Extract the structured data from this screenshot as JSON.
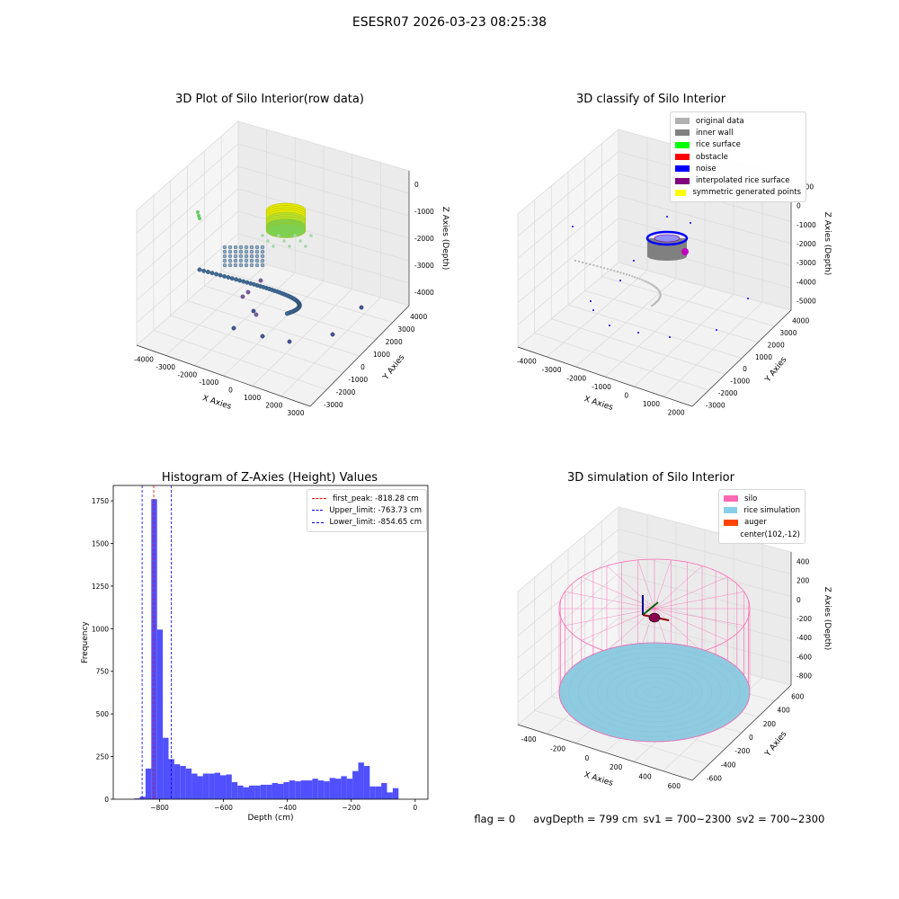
{
  "suptitle": "ESESR07 2026-03-23 08:25:38",
  "panels": {
    "raw": {
      "title": "3D Plot of Silo Interior(row data)",
      "xlabel": "X Axies",
      "ylabel": "Y Axies",
      "zlabel": "Z Axies (Depth)",
      "xticks": [
        "-4000",
        "-3000",
        "-2000",
        "-1000",
        "0",
        "1000",
        "2000",
        "3000"
      ],
      "yticks": [
        "-3000",
        "-2000",
        "-1000",
        "0",
        "1000",
        "2000",
        "3000",
        "4000"
      ],
      "zticks": [
        "0",
        "-1000",
        "-2000",
        "-3000",
        "-4000"
      ]
    },
    "classify": {
      "title": "3D classify of Silo Interior",
      "xlabel": "X Axies",
      "ylabel": "Y Axies",
      "zlabel": "Z Axies (Depth)",
      "xticks": [
        "-4000",
        "-3000",
        "-2000",
        "-1000",
        "0",
        "1000",
        "2000"
      ],
      "yticks": [
        "-3000",
        "-2000",
        "-1000",
        "0",
        "1000",
        "2000",
        "3000",
        "4000"
      ],
      "zticks": [
        "1000",
        "0",
        "-1000",
        "-2000",
        "-3000",
        "-4000",
        "-5000"
      ],
      "legend": [
        {
          "label": "original data",
          "color": "#b0b0b0"
        },
        {
          "label": "inner wall",
          "color": "#808080"
        },
        {
          "label": "rice surface",
          "color": "#00ff00"
        },
        {
          "label": "obstacle",
          "color": "#ff0000"
        },
        {
          "label": "noise",
          "color": "#0000ff"
        },
        {
          "label": "interpolated rice surface",
          "color": "#800080"
        },
        {
          "label": "symmetric generated points",
          "color": "#ffff00"
        }
      ]
    },
    "simulation": {
      "title": "3D simulation of Silo Interior",
      "xlabel": "X Axies",
      "ylabel": "Y Axies",
      "zlabel": "Z Axies (Depth)",
      "xticks": [
        "-400",
        "-200",
        "0",
        "200",
        "400",
        "600"
      ],
      "yticks": [
        "-600",
        "-400",
        "-200",
        "0",
        "200",
        "400",
        "600"
      ],
      "zticks": [
        "400",
        "200",
        "0",
        "-200",
        "-400",
        "-600",
        "-800"
      ],
      "legend": [
        {
          "label": "silo",
          "color": "#ff69b4"
        },
        {
          "label": "rice simulation",
          "color": "#87ceeb"
        },
        {
          "label": "auger",
          "color": "#ff4500"
        },
        {
          "label": "center(102,-12)",
          "color": ""
        }
      ]
    }
  },
  "chart_data": {
    "type": "bar",
    "title": "Histogram of Z-Axies (Height) Values",
    "xlabel": "Depth (cm)",
    "ylabel": "Frequency",
    "xlim": [
      -945,
      40
    ],
    "ylim": [
      0,
      1840
    ],
    "xticks": [
      -800,
      -600,
      -400,
      -200,
      0
    ],
    "yticks": [
      0,
      250,
      500,
      750,
      1000,
      1250,
      1500,
      1750
    ],
    "bar_color": "#5050ff",
    "bin_width": 18,
    "bins": [
      {
        "x": -880,
        "v": 5
      },
      {
        "x": -862,
        "v": 15
      },
      {
        "x": -844,
        "v": 180
      },
      {
        "x": -826,
        "v": 1760
      },
      {
        "x": -808,
        "v": 995
      },
      {
        "x": -790,
        "v": 360
      },
      {
        "x": -772,
        "v": 235
      },
      {
        "x": -754,
        "v": 205
      },
      {
        "x": -736,
        "v": 195
      },
      {
        "x": -718,
        "v": 180
      },
      {
        "x": -700,
        "v": 150
      },
      {
        "x": -682,
        "v": 135
      },
      {
        "x": -664,
        "v": 150
      },
      {
        "x": -646,
        "v": 150
      },
      {
        "x": -628,
        "v": 155
      },
      {
        "x": -610,
        "v": 140
      },
      {
        "x": -592,
        "v": 145
      },
      {
        "x": -574,
        "v": 100
      },
      {
        "x": -556,
        "v": 80
      },
      {
        "x": -538,
        "v": 70
      },
      {
        "x": -520,
        "v": 80
      },
      {
        "x": -502,
        "v": 80
      },
      {
        "x": -484,
        "v": 85
      },
      {
        "x": -466,
        "v": 85
      },
      {
        "x": -448,
        "v": 95
      },
      {
        "x": -430,
        "v": 90
      },
      {
        "x": -412,
        "v": 100
      },
      {
        "x": -394,
        "v": 110
      },
      {
        "x": -376,
        "v": 105
      },
      {
        "x": -358,
        "v": 110
      },
      {
        "x": -340,
        "v": 110
      },
      {
        "x": -322,
        "v": 120
      },
      {
        "x": -304,
        "v": 110
      },
      {
        "x": -286,
        "v": 105
      },
      {
        "x": -268,
        "v": 125
      },
      {
        "x": -250,
        "v": 120
      },
      {
        "x": -232,
        "v": 135
      },
      {
        "x": -214,
        "v": 120
      },
      {
        "x": -196,
        "v": 165
      },
      {
        "x": -178,
        "v": 215
      },
      {
        "x": -160,
        "v": 195
      },
      {
        "x": -142,
        "v": 75
      },
      {
        "x": -124,
        "v": 75
      },
      {
        "x": -106,
        "v": 95
      },
      {
        "x": -88,
        "v": 40
      },
      {
        "x": -70,
        "v": 65
      }
    ],
    "vlines": [
      {
        "label": "first_peak: -818.28 cm",
        "x": -818.28,
        "color": "#ff0000"
      },
      {
        "label": "Upper_limit: -763.73 cm",
        "x": -763.73,
        "color": "#0000ff"
      },
      {
        "label": "Lower_limit: -854.65 cm",
        "x": -854.65,
        "color": "#0000ff"
      }
    ]
  },
  "status": {
    "flag": "flag = 0",
    "avg_depth": "avgDepth = 799 cm",
    "sv1": "sv1 = 700~2300",
    "sv2": "sv2 = 700~2300"
  }
}
